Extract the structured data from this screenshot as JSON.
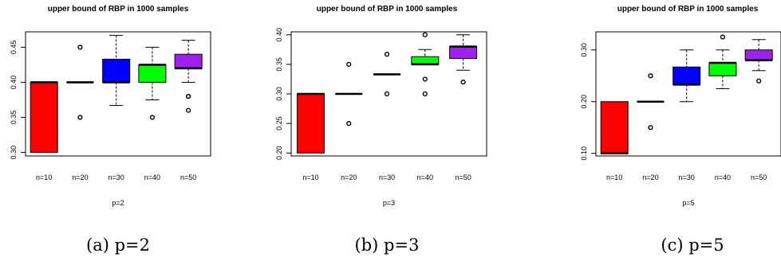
{
  "chart_data": [
    {
      "type": "boxplot",
      "title": "upper bound of RBP in 1000 samples",
      "xlabel": "p=2",
      "caption": "(a) p=2",
      "ylim": [
        0.295,
        0.472
      ],
      "yticks": [
        0.3,
        0.35,
        0.4,
        0.45
      ],
      "ytick_labels": [
        "0.30",
        "0.35",
        "0.40",
        "0.45"
      ],
      "categories": [
        "n=10",
        "n=20",
        "n=30",
        "n=40",
        "n=50"
      ],
      "colors": [
        "#ff0000",
        "#000000",
        "#0000ff",
        "#00ff00",
        "#a020f0"
      ],
      "boxes": [
        {
          "whisker_low": 0.3,
          "q1": 0.3,
          "median": 0.4,
          "q3": 0.4,
          "whisker_high": 0.4,
          "outliers": []
        },
        {
          "whisker_low": 0.4,
          "q1": 0.4,
          "median": 0.4,
          "q3": 0.4,
          "whisker_high": 0.4,
          "outliers": [
            0.35,
            0.45
          ]
        },
        {
          "whisker_low": 0.367,
          "q1": 0.4,
          "median": 0.4,
          "q3": 0.433,
          "whisker_high": 0.467,
          "outliers": []
        },
        {
          "whisker_low": 0.375,
          "q1": 0.4,
          "median": 0.425,
          "q3": 0.425,
          "whisker_high": 0.45,
          "outliers": [
            0.35
          ]
        },
        {
          "whisker_low": 0.4,
          "q1": 0.42,
          "median": 0.42,
          "q3": 0.44,
          "whisker_high": 0.46,
          "outliers": [
            0.38,
            0.38,
            0.36
          ]
        }
      ]
    },
    {
      "type": "boxplot",
      "title": "upper bound of RBP in 1000 samples",
      "xlabel": "p=3",
      "caption": "(b) p=3",
      "ylim": [
        0.195,
        0.405
      ],
      "yticks": [
        0.2,
        0.25,
        0.3,
        0.35,
        0.4
      ],
      "ytick_labels": [
        "0.20",
        "0.25",
        "0.30",
        "0.35",
        "0.40"
      ],
      "categories": [
        "n=10",
        "n=20",
        "n=30",
        "n=40",
        "n=50"
      ],
      "colors": [
        "#ff0000",
        "#000000",
        "#000000",
        "#00ff00",
        "#a020f0"
      ],
      "boxes": [
        {
          "whisker_low": 0.2,
          "q1": 0.2,
          "median": 0.3,
          "q3": 0.3,
          "whisker_high": 0.3,
          "outliers": []
        },
        {
          "whisker_low": 0.3,
          "q1": 0.3,
          "median": 0.3,
          "q3": 0.3,
          "whisker_high": 0.3,
          "outliers": [
            0.25,
            0.35
          ]
        },
        {
          "whisker_low": 0.333,
          "q1": 0.333,
          "median": 0.333,
          "q3": 0.333,
          "whisker_high": 0.333,
          "outliers": [
            0.3,
            0.367
          ]
        },
        {
          "whisker_low": 0.35,
          "q1": 0.35,
          "median": 0.35,
          "q3": 0.363,
          "whisker_high": 0.375,
          "outliers": [
            0.4,
            0.325,
            0.3
          ]
        },
        {
          "whisker_low": 0.34,
          "q1": 0.36,
          "median": 0.38,
          "q3": 0.38,
          "whisker_high": 0.4,
          "outliers": [
            0.32
          ]
        }
      ]
    },
    {
      "type": "boxplot",
      "title": "upper bound of RBP in 1000 samples",
      "xlabel": "p=5",
      "caption": "(c) p=5",
      "ylim": [
        0.095,
        0.335
      ],
      "yticks": [
        0.1,
        0.2,
        0.3
      ],
      "ytick_labels": [
        "0.10",
        "0.20",
        "0.30"
      ],
      "categories": [
        "n=10",
        "n=20",
        "n=30",
        "n=40",
        "n=50"
      ],
      "colors": [
        "#ff0000",
        "#000000",
        "#0000ff",
        "#00ff00",
        "#a020f0"
      ],
      "boxes": [
        {
          "whisker_low": 0.1,
          "q1": 0.1,
          "median": 0.1,
          "q3": 0.2,
          "whisker_high": 0.2,
          "outliers": []
        },
        {
          "whisker_low": 0.2,
          "q1": 0.2,
          "median": 0.2,
          "q3": 0.2,
          "whisker_high": 0.2,
          "outliers": [
            0.15,
            0.25
          ]
        },
        {
          "whisker_low": 0.2,
          "q1": 0.233,
          "median": 0.233,
          "q3": 0.267,
          "whisker_high": 0.3,
          "outliers": []
        },
        {
          "whisker_low": 0.225,
          "q1": 0.25,
          "median": 0.275,
          "q3": 0.275,
          "whisker_high": 0.3,
          "outliers": [
            0.325
          ]
        },
        {
          "whisker_low": 0.26,
          "q1": 0.28,
          "median": 0.28,
          "q3": 0.3,
          "whisker_high": 0.32,
          "outliers": [
            0.24
          ]
        }
      ]
    }
  ]
}
